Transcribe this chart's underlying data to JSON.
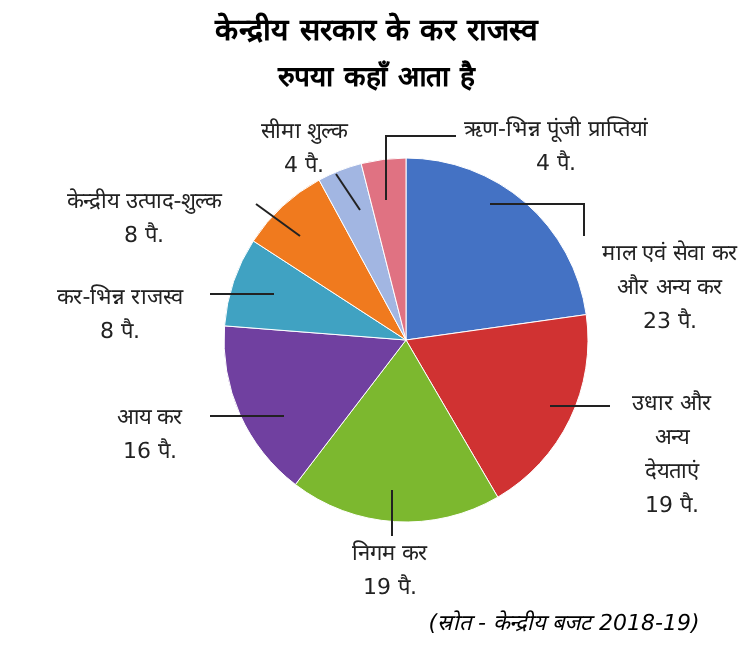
{
  "chart_data": {
    "type": "pie",
    "title": "केन्द्रीय सरकार के कर राजस्व",
    "subtitle": "रुपया कहाँ आता है",
    "categories": [
      "माल एवं सेवा कर और अन्य कर",
      "उधार और अन्य देयताएं",
      "निगम कर",
      "आय कर",
      "कर-भिन्न राजस्व",
      "केन्द्रीय उत्पाद-शुल्क",
      "सीमा शुल्क",
      "ऋण-भिन्न पूंजी प्राप्तियां"
    ],
    "values": [
      23,
      19,
      19,
      16,
      8,
      8,
      4,
      4
    ],
    "value_labels": [
      "23 पै.",
      "19 पै.",
      "19 पै.",
      "16 पै.",
      "8 पै.",
      "8 पै.",
      "4 पै.",
      "4 पै."
    ],
    "colors": [
      "#4472c4",
      "#d03232",
      "#7cb82f",
      "#7040a0",
      "#40a2c2",
      "#f07a1e",
      "#a2b6e2",
      "#e07282"
    ],
    "annotations": [
      "(स्रोत - केन्द्रीय बजट 2018-19)"
    ]
  }
}
